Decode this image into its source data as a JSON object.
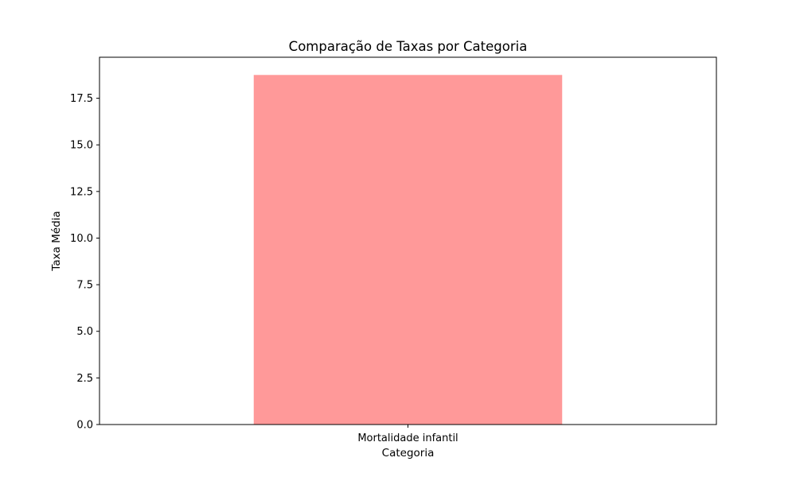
{
  "chart_data": {
    "type": "bar",
    "title": "Comparação de Taxas por Categoria",
    "xlabel": "Categoria",
    "ylabel": "Taxa Média",
    "categories": [
      "Mortalidade infantil"
    ],
    "values": [
      18.75
    ],
    "ylim": [
      0,
      19.7
    ],
    "yticks": [
      0.0,
      2.5,
      5.0,
      7.5,
      10.0,
      12.5,
      15.0,
      17.5
    ],
    "ytick_labels": [
      "0.0",
      "2.5",
      "5.0",
      "7.5",
      "10.0",
      "12.5",
      "15.0",
      "17.5"
    ],
    "bar_color": "#ff9999",
    "grid": false,
    "legend": false
  }
}
